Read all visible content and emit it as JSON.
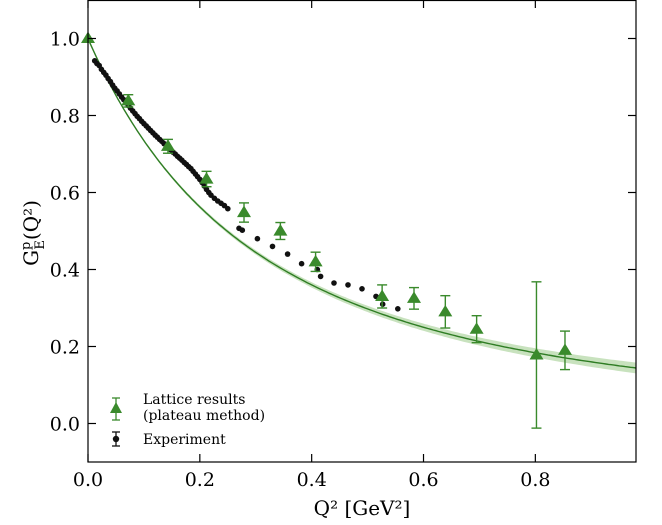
{
  "chart_data": {
    "type": "scatter",
    "title": "",
    "xlabel": "Q² [GeV²]",
    "ylabel_parts": {
      "base": "G",
      "sup": "p",
      "sub": "E",
      "arg": "(Q²)"
    },
    "xlim": [
      0.0,
      0.98
    ],
    "ylim": [
      -0.1,
      1.1
    ],
    "x_ticks": [
      0.0,
      0.2,
      0.4,
      0.6,
      0.8
    ],
    "x_tick_labels": [
      "0.0",
      "0.2",
      "0.4",
      "0.6",
      "0.8"
    ],
    "y_ticks": [
      0.0,
      0.2,
      0.4,
      0.6,
      0.8,
      1.0
    ],
    "y_tick_labels": [
      "0.0",
      "0.2",
      "0.4",
      "0.6",
      "0.8",
      "1.0"
    ],
    "grid": false,
    "legend_position": "bottom-left",
    "colors": {
      "lattice": "#3a8a2c",
      "experiment": "#111111",
      "fit": "#2f7d24",
      "band": "#b5d8a8"
    },
    "series": [
      {
        "name": "Lattice results (plateau method)",
        "legend_lines": [
          "Lattice results",
          "(plateau method)"
        ],
        "marker": "triangle",
        "points": [
          {
            "x": 0.0,
            "y": 1.0,
            "err": 0.0
          },
          {
            "x": 0.072,
            "y": 0.838,
            "err": 0.016
          },
          {
            "x": 0.143,
            "y": 0.72,
            "err": 0.018
          },
          {
            "x": 0.212,
            "y": 0.635,
            "err": 0.02
          },
          {
            "x": 0.279,
            "y": 0.548,
            "err": 0.025
          },
          {
            "x": 0.344,
            "y": 0.5,
            "err": 0.022
          },
          {
            "x": 0.407,
            "y": 0.42,
            "err": 0.025
          },
          {
            "x": 0.526,
            "y": 0.33,
            "err": 0.03
          },
          {
            "x": 0.583,
            "y": 0.325,
            "err": 0.028
          },
          {
            "x": 0.639,
            "y": 0.29,
            "err": 0.042
          },
          {
            "x": 0.695,
            "y": 0.245,
            "err": 0.035
          },
          {
            "x": 0.802,
            "y": 0.178,
            "err": 0.19
          },
          {
            "x": 0.853,
            "y": 0.19,
            "err": 0.05
          }
        ]
      },
      {
        "name": "Experiment",
        "legend_lines": [
          "Experiment"
        ],
        "marker": "circle",
        "points": [
          {
            "x": 0.012,
            "y": 0.942
          },
          {
            "x": 0.016,
            "y": 0.935
          },
          {
            "x": 0.02,
            "y": 0.93
          },
          {
            "x": 0.024,
            "y": 0.92
          },
          {
            "x": 0.028,
            "y": 0.912
          },
          {
            "x": 0.032,
            "y": 0.905
          },
          {
            "x": 0.036,
            "y": 0.896
          },
          {
            "x": 0.04,
            "y": 0.888
          },
          {
            "x": 0.044,
            "y": 0.879
          },
          {
            "x": 0.048,
            "y": 0.871
          },
          {
            "x": 0.052,
            "y": 0.864
          },
          {
            "x": 0.056,
            "y": 0.856
          },
          {
            "x": 0.06,
            "y": 0.848
          },
          {
            "x": 0.064,
            "y": 0.841
          },
          {
            "x": 0.068,
            "y": 0.833
          },
          {
            "x": 0.072,
            "y": 0.826
          },
          {
            "x": 0.076,
            "y": 0.819
          },
          {
            "x": 0.08,
            "y": 0.812
          },
          {
            "x": 0.084,
            "y": 0.805
          },
          {
            "x": 0.088,
            "y": 0.798
          },
          {
            "x": 0.092,
            "y": 0.792
          },
          {
            "x": 0.096,
            "y": 0.785
          },
          {
            "x": 0.1,
            "y": 0.779
          },
          {
            "x": 0.104,
            "y": 0.773
          },
          {
            "x": 0.108,
            "y": 0.767
          },
          {
            "x": 0.112,
            "y": 0.761
          },
          {
            "x": 0.116,
            "y": 0.755
          },
          {
            "x": 0.12,
            "y": 0.749
          },
          {
            "x": 0.124,
            "y": 0.744
          },
          {
            "x": 0.128,
            "y": 0.738
          },
          {
            "x": 0.132,
            "y": 0.733
          },
          {
            "x": 0.136,
            "y": 0.727
          },
          {
            "x": 0.14,
            "y": 0.722
          },
          {
            "x": 0.144,
            "y": 0.716
          },
          {
            "x": 0.148,
            "y": 0.711
          },
          {
            "x": 0.152,
            "y": 0.705
          },
          {
            "x": 0.156,
            "y": 0.7
          },
          {
            "x": 0.16,
            "y": 0.694
          },
          {
            "x": 0.164,
            "y": 0.689
          },
          {
            "x": 0.168,
            "y": 0.684
          },
          {
            "x": 0.172,
            "y": 0.678
          },
          {
            "x": 0.176,
            "y": 0.673
          },
          {
            "x": 0.18,
            "y": 0.667
          },
          {
            "x": 0.184,
            "y": 0.662
          },
          {
            "x": 0.188,
            "y": 0.655
          },
          {
            "x": 0.192,
            "y": 0.648
          },
          {
            "x": 0.196,
            "y": 0.641
          },
          {
            "x": 0.2,
            "y": 0.634
          },
          {
            "x": 0.204,
            "y": 0.626
          },
          {
            "x": 0.208,
            "y": 0.617
          },
          {
            "x": 0.212,
            "y": 0.608
          },
          {
            "x": 0.216,
            "y": 0.6
          },
          {
            "x": 0.22,
            "y": 0.593
          },
          {
            "x": 0.226,
            "y": 0.585
          },
          {
            "x": 0.232,
            "y": 0.578
          },
          {
            "x": 0.238,
            "y": 0.572
          },
          {
            "x": 0.244,
            "y": 0.566
          },
          {
            "x": 0.25,
            "y": 0.558
          },
          {
            "x": 0.27,
            "y": 0.507
          },
          {
            "x": 0.276,
            "y": 0.502
          },
          {
            "x": 0.303,
            "y": 0.48
          },
          {
            "x": 0.33,
            "y": 0.46
          },
          {
            "x": 0.357,
            "y": 0.44
          },
          {
            "x": 0.382,
            "y": 0.415
          },
          {
            "x": 0.41,
            "y": 0.4
          },
          {
            "x": 0.416,
            "y": 0.382
          },
          {
            "x": 0.44,
            "y": 0.365
          },
          {
            "x": 0.465,
            "y": 0.36
          },
          {
            "x": 0.49,
            "y": 0.35
          },
          {
            "x": 0.515,
            "y": 0.33
          },
          {
            "x": 0.527,
            "y": 0.31
          },
          {
            "x": 0.554,
            "y": 0.298
          }
        ]
      }
    ],
    "fit": {
      "type": "dipole",
      "M2": 0.6,
      "band_width": 0.012
    }
  }
}
